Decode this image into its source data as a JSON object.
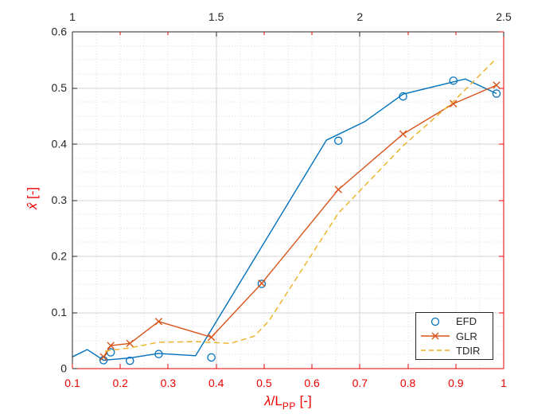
{
  "chart_data": {
    "type": "line",
    "title": "",
    "axes": {
      "bottom": {
        "label": {
          "lambda": "λ",
          "mid": "/L",
          "sub": "PP",
          "suffix": " [-]"
        },
        "min": 0.1,
        "max": 1.0,
        "ticks": [
          0.1,
          0.2,
          0.3,
          0.4,
          0.5,
          0.6,
          0.7,
          0.8,
          0.9,
          1
        ],
        "tick_labels": [
          "0.1",
          "0.2",
          "0.3",
          "0.4",
          "0.5",
          "0.6",
          "0.7",
          "0.8",
          "0.9",
          "1"
        ],
        "color": "#ee0000"
      },
      "top": {
        "min": 1.0,
        "max": 2.5,
        "ticks": [
          1,
          1.5,
          2,
          2.5
        ],
        "tick_labels": [
          "1",
          "1.5",
          "2",
          "2.5"
        ],
        "color": "#262626"
      },
      "left": {
        "label": {
          "hat_x": "x̂",
          "suffix": " [-]"
        },
        "label_color": "#ee0000",
        "min": 0,
        "max": 0.6,
        "ticks": [
          0,
          0.1,
          0.2,
          0.3,
          0.4,
          0.5,
          0.6
        ],
        "tick_labels": [
          "0",
          "0.1",
          "0.2",
          "0.3",
          "0.4",
          "0.5",
          "0.6"
        ],
        "tick_color": "#262626"
      },
      "right": {
        "color": "#ee0000"
      }
    },
    "grid": {
      "minor_x_step": 0.05,
      "minor_y_step": 0.025,
      "major_x": [
        0.4,
        0.7
      ],
      "major_y": [
        0.1,
        0.2,
        0.3,
        0.4,
        0.5
      ]
    },
    "series": [
      {
        "name": "EFD",
        "color": "#0072BD",
        "line_style": "solid",
        "marker": "circle",
        "line": {
          "x": [
            0.1,
            0.131,
            0.165,
            0.22,
            0.28,
            0.357,
            0.63,
            0.71,
            0.79,
            0.92,
            0.985
          ],
          "y": [
            0.021,
            0.034,
            0.015,
            0.019,
            0.027,
            0.023,
            0.407,
            0.44,
            0.489,
            0.516,
            0.49
          ]
        },
        "points": {
          "x": [
            0.165,
            0.18,
            0.22,
            0.28,
            0.39,
            0.495,
            0.655,
            0.79,
            0.895,
            0.985
          ],
          "y": [
            0.015,
            0.029,
            0.014,
            0.026,
            0.02,
            0.151,
            0.406,
            0.485,
            0.513,
            0.49
          ]
        }
      },
      {
        "name": "GLR",
        "color": "#D95319",
        "line_style": "solid",
        "marker": "x",
        "line": {
          "x": [
            0.165,
            0.18,
            0.22,
            0.28,
            0.39,
            0.495,
            0.655,
            0.79,
            0.895,
            0.985
          ],
          "y": [
            0.021,
            0.041,
            0.045,
            0.084,
            0.056,
            0.152,
            0.319,
            0.418,
            0.472,
            0.505
          ]
        },
        "points": {
          "x": [
            0.165,
            0.18,
            0.22,
            0.28,
            0.39,
            0.495,
            0.655,
            0.79,
            0.895,
            0.985
          ],
          "y": [
            0.021,
            0.041,
            0.045,
            0.084,
            0.056,
            0.152,
            0.319,
            0.418,
            0.472,
            0.505
          ]
        }
      },
      {
        "name": "TDIR",
        "color": "#EDB120",
        "line_style": "dashed",
        "marker": "none",
        "line": {
          "x": [
            0.168,
            0.22,
            0.28,
            0.36,
            0.43,
            0.48,
            0.51,
            0.655,
            0.79,
            0.9,
            0.985
          ],
          "y": [
            0.031,
            0.037,
            0.047,
            0.048,
            0.045,
            0.058,
            0.085,
            0.277,
            0.397,
            0.48,
            0.553
          ]
        }
      }
    ],
    "legend": {
      "entries": [
        "EFD",
        "GLR",
        "TDIR"
      ],
      "position": "southeast"
    }
  }
}
